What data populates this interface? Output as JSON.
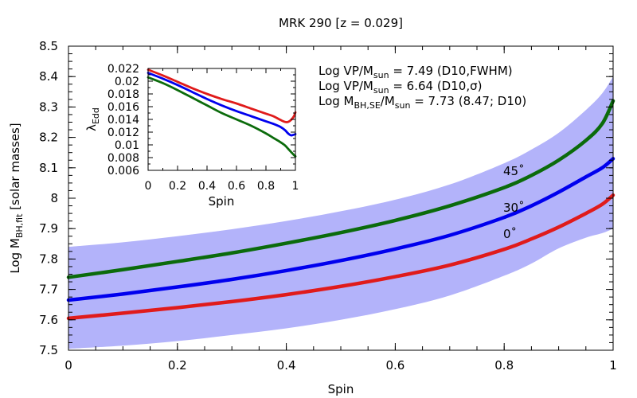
{
  "chart_data": [
    {
      "type": "line",
      "title": "MRK 290  [z = 0.029]",
      "xlabel": "Spin",
      "ylabel_main": "Log M",
      "ylabel_sub": "BH,fit",
      "ylabel_rest": "  [solar masses]",
      "xlim": [
        0,
        1
      ],
      "ylim": [
        7.5,
        8.5
      ],
      "x_ticks": [
        0,
        0.2,
        0.4,
        0.6,
        0.8,
        1
      ],
      "x_tick_labels": [
        "0",
        "0.2",
        "0.4",
        "0.6",
        "0.8",
        "1"
      ],
      "y_ticks": [
        7.5,
        7.6,
        7.7,
        7.8,
        7.9,
        8,
        8.1,
        8.2,
        8.3,
        8.4,
        8.5
      ],
      "y_tick_labels": [
        "7.5",
        "7.6",
        "7.7",
        "7.8",
        "7.9",
        "8",
        "8.1",
        "8.2",
        "8.3",
        "8.4",
        "8.5"
      ],
      "band": {
        "color": "#b3b3fa",
        "x": [
          0,
          0.1,
          0.2,
          0.3,
          0.4,
          0.5,
          0.6,
          0.7,
          0.8,
          0.85,
          0.9,
          0.95,
          0.98,
          1.0
        ],
        "upper": [
          7.84,
          7.855,
          7.875,
          7.898,
          7.925,
          7.957,
          7.995,
          8.045,
          8.115,
          8.16,
          8.215,
          8.29,
          8.345,
          8.4
        ],
        "lower": [
          7.505,
          7.515,
          7.53,
          7.55,
          7.572,
          7.6,
          7.635,
          7.68,
          7.745,
          7.785,
          7.835,
          7.87,
          7.885,
          7.9
        ]
      },
      "series": [
        {
          "label": "45˚",
          "color": "#0b6b0b",
          "label_color": "#1f3a7a",
          "x": [
            0,
            0.1,
            0.2,
            0.3,
            0.4,
            0.5,
            0.6,
            0.7,
            0.8,
            0.85,
            0.9,
            0.95,
            0.98,
            1.0
          ],
          "y": [
            7.74,
            7.765,
            7.792,
            7.82,
            7.852,
            7.887,
            7.927,
            7.975,
            8.035,
            8.075,
            8.125,
            8.19,
            8.245,
            8.32
          ]
        },
        {
          "label": "30˚",
          "color": "#0000ee",
          "label_color": "#0000cc",
          "x": [
            0,
            0.1,
            0.2,
            0.3,
            0.4,
            0.5,
            0.6,
            0.7,
            0.8,
            0.85,
            0.9,
            0.95,
            0.98,
            1.0
          ],
          "y": [
            7.665,
            7.685,
            7.708,
            7.733,
            7.762,
            7.795,
            7.833,
            7.878,
            7.937,
            7.975,
            8.02,
            8.07,
            8.1,
            8.13
          ]
        },
        {
          "label": "0˚",
          "color": "#e01b1b",
          "label_color": "#880088",
          "x": [
            0,
            0.1,
            0.2,
            0.3,
            0.4,
            0.5,
            0.6,
            0.7,
            0.8,
            0.85,
            0.9,
            0.95,
            0.98,
            1.0
          ],
          "y": [
            7.605,
            7.622,
            7.64,
            7.66,
            7.683,
            7.71,
            7.742,
            7.78,
            7.832,
            7.866,
            7.905,
            7.95,
            7.98,
            8.01
          ]
        }
      ],
      "annotations": [
        {
          "main": "Log VP/M",
          "sub": "sun",
          "rest": " = 7.49 (D10,FWHM)"
        },
        {
          "main": "Log VP/M",
          "sub": "sun",
          "rest": " = 6.64 (D10,σ)"
        },
        {
          "main": "Log M",
          "sub": "BH,SE",
          "mid": "/M",
          "sub2": "sun",
          "rest": " = 7.73 (8.47; D10)"
        }
      ]
    },
    {
      "type": "line",
      "xlabel": "Spin",
      "ylabel_main": "λ",
      "ylabel_sub": "Edd",
      "xlim": [
        0,
        1
      ],
      "ylim": [
        0.006,
        0.022
      ],
      "x_ticks": [
        0,
        0.2,
        0.4,
        0.6,
        0.8,
        1
      ],
      "x_tick_labels": [
        "0",
        "0.2",
        "0.4",
        "0.6",
        "0.8",
        "1"
      ],
      "y_ticks": [
        0.006,
        0.008,
        0.01,
        0.012,
        0.014,
        0.016,
        0.018,
        0.02,
        0.022
      ],
      "y_tick_labels": [
        "0.006",
        "0.008",
        "0.01",
        "0.012",
        "0.014",
        "0.016",
        "0.018",
        "0.02",
        "0.022"
      ],
      "series": [
        {
          "color": "#e01b1b",
          "x": [
            0,
            0.1,
            0.2,
            0.3,
            0.4,
            0.5,
            0.6,
            0.7,
            0.8,
            0.85,
            0.9,
            0.93,
            0.95,
            0.97,
            0.99,
            1.0
          ],
          "y": [
            0.0218,
            0.0209,
            0.0199,
            0.0189,
            0.018,
            0.0172,
            0.0165,
            0.0157,
            0.0149,
            0.0145,
            0.0139,
            0.0136,
            0.0136,
            0.0139,
            0.0145,
            0.0151
          ]
        },
        {
          "color": "#0000ee",
          "x": [
            0,
            0.1,
            0.2,
            0.3,
            0.4,
            0.5,
            0.6,
            0.7,
            0.8,
            0.85,
            0.9,
            0.93,
            0.95,
            0.97,
            0.99,
            1.0
          ],
          "y": [
            0.0213,
            0.0204,
            0.0194,
            0.0183,
            0.0172,
            0.0162,
            0.0153,
            0.0145,
            0.0137,
            0.0133,
            0.0128,
            0.0123,
            0.0118,
            0.0115,
            0.0116,
            0.0117
          ]
        },
        {
          "color": "#0b6b0b",
          "x": [
            0,
            0.1,
            0.2,
            0.3,
            0.4,
            0.5,
            0.6,
            0.7,
            0.8,
            0.85,
            0.9,
            0.93,
            0.95,
            0.97,
            0.99,
            1.0
          ],
          "y": [
            0.0206,
            0.0197,
            0.0186,
            0.0174,
            0.0162,
            0.015,
            0.014,
            0.013,
            0.0118,
            0.0111,
            0.0104,
            0.0099,
            0.0094,
            0.0089,
            0.0084,
            0.0082
          ]
        }
      ]
    }
  ]
}
